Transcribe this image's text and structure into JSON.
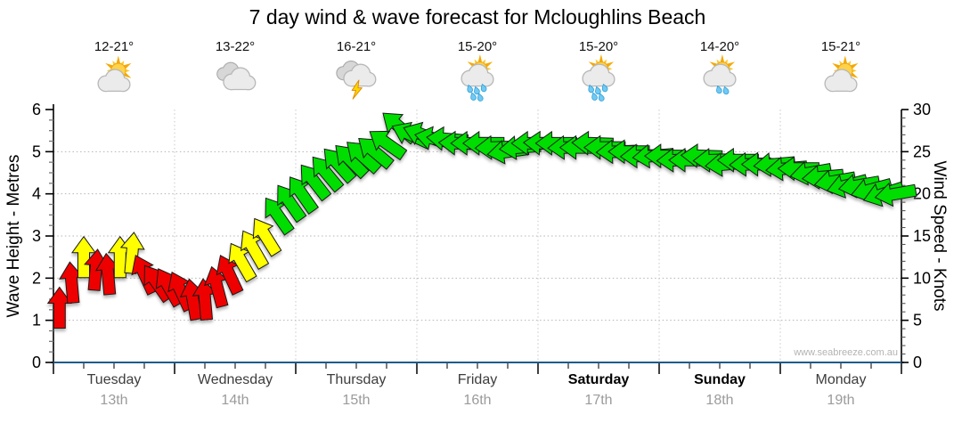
{
  "title": "7 day wind & wave forecast for Mcloughlins Beach",
  "watermark": "www.seabreeze.com.au",
  "forecast": {
    "days": [
      {
        "temp_range": "12-21°",
        "icon": "partly-cloudy",
        "name": "Tuesday",
        "date": "13th",
        "weekend": false
      },
      {
        "temp_range": "13-22°",
        "icon": "cloudy",
        "name": "Wednesday",
        "date": "14th",
        "weekend": false
      },
      {
        "temp_range": "16-21°",
        "icon": "thunderstorm",
        "name": "Thursday",
        "date": "15th",
        "weekend": false
      },
      {
        "temp_range": "15-20°",
        "icon": "sun-showers",
        "name": "Friday",
        "date": "16th",
        "weekend": false
      },
      {
        "temp_range": "15-20°",
        "icon": "sun-showers",
        "name": "Saturday",
        "date": "17th",
        "weekend": true
      },
      {
        "temp_range": "14-20°",
        "icon": "sun-light-showers",
        "name": "Sunday",
        "date": "18th",
        "weekend": true
      },
      {
        "temp_range": "15-21°",
        "icon": "partly-cloudy",
        "name": "Monday",
        "date": "19th",
        "weekend": false
      }
    ]
  },
  "chart_data": {
    "type": "wind-arrows",
    "title": "7 day wind & wave forecast for Mcloughlins Beach",
    "y_left": {
      "label": "Wave Height - Metres",
      "min": 0,
      "max": 6,
      "major_tick": 1,
      "minor_tick": 0.25
    },
    "y_right": {
      "label": "Wind Speed - Knots",
      "min": 0,
      "max": 30,
      "major_tick": 5,
      "minor_tick": 1
    },
    "x_axis": {
      "day_labels": [
        "Tuesday 13th",
        "Wednesday 14th",
        "Thursday 15th",
        "Friday 16th",
        "Saturday 17th",
        "Sunday 18th",
        "Monday 19th"
      ],
      "points_per_day": 10,
      "minor_tick_intervals_per_day": 4
    },
    "grid": {
      "horizontal_at_metres": [
        1,
        2,
        3,
        4,
        5
      ],
      "vertical_at_day_boundaries": true
    },
    "speed_colors": {
      "red": "#ee0000",
      "yellow": "#ffff00",
      "green": "#00dd00",
      "red_below_knots": 12,
      "green_from_knots": 17
    },
    "direction_convention": "degrees of arrow rotation; 0 = arrow points up (northward wind), -90 = arrow points left (westward wind)",
    "wind_speed_unit": "knots",
    "wind_knots": [
      6.5,
      9.5,
      12.5,
      11,
      10.5,
      12.5,
      13,
      10.5,
      9.5,
      9,
      8.5,
      7.5,
      7.5,
      9,
      10.5,
      12,
      13.5,
      15,
      17.5,
      19,
      20,
      21.5,
      22.5,
      23.5,
      24,
      24.5,
      25,
      26,
      28,
      27,
      27,
      26.5,
      26.5,
      26,
      26,
      26,
      25.5,
      25,
      25.5,
      26,
      26,
      26,
      25.5,
      25.5,
      26,
      25.5,
      25,
      25,
      24.5,
      24.5,
      24.5,
      24,
      24,
      24.5,
      24,
      23.5,
      24,
      23.5,
      23.5,
      23.5,
      23,
      23,
      22.5,
      22,
      21.5,
      21,
      21,
      20.5,
      20,
      20
    ],
    "wind_dir_deg": [
      0,
      -5,
      0,
      5,
      -5,
      0,
      5,
      -25,
      -35,
      -30,
      -25,
      -10,
      -5,
      -15,
      -25,
      -30,
      -30,
      -32,
      -35,
      -35,
      -35,
      -38,
      -40,
      -42,
      -45,
      -48,
      -50,
      -55,
      -50,
      -65,
      -70,
      -78,
      -85,
      -88,
      -90,
      -90,
      -92,
      -98,
      -95,
      -90,
      -88,
      -90,
      -92,
      -90,
      -88,
      -90,
      -92,
      -90,
      -92,
      -95,
      -90,
      -92,
      -90,
      -88,
      -92,
      -95,
      -90,
      -92,
      -90,
      -95,
      -95,
      -90,
      -100,
      -95,
      -100,
      -105,
      -100,
      -105,
      -108,
      -100
    ]
  }
}
